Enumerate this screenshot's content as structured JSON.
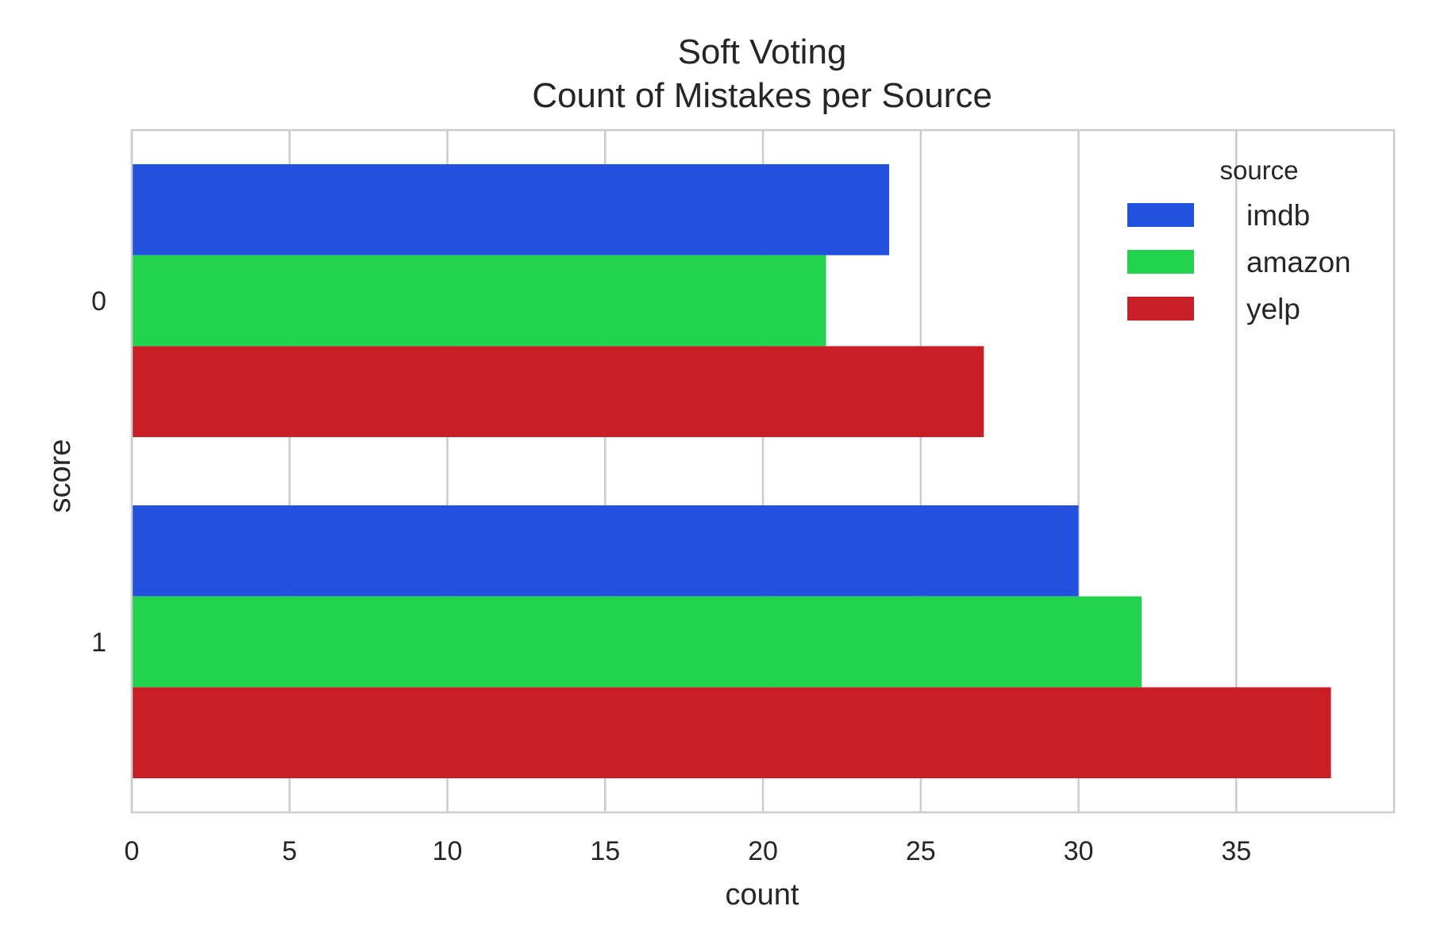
{
  "chart_data": {
    "type": "bar",
    "orientation": "horizontal",
    "title": "Soft Voting",
    "subtitle": "Count of Mistakes per Source",
    "xlabel": "count",
    "ylabel": "score",
    "categories": [
      "0",
      "1"
    ],
    "xlim": [
      0,
      40
    ],
    "xticks": [
      0,
      5,
      10,
      15,
      20,
      25,
      30,
      35
    ],
    "xtick_labels": [
      "0",
      "5",
      "10",
      "15",
      "20",
      "25",
      "30",
      "35"
    ],
    "grid": true,
    "legend": {
      "title": "source",
      "placement": "top-right"
    },
    "series": [
      {
        "name": "imdb",
        "color": "#2251e0",
        "values": [
          24,
          30
        ]
      },
      {
        "name": "amazon",
        "color": "#22d34d",
        "values": [
          22,
          32
        ]
      },
      {
        "name": "yelp",
        "color": "#ca1e27",
        "values": [
          27,
          38
        ]
      }
    ]
  }
}
